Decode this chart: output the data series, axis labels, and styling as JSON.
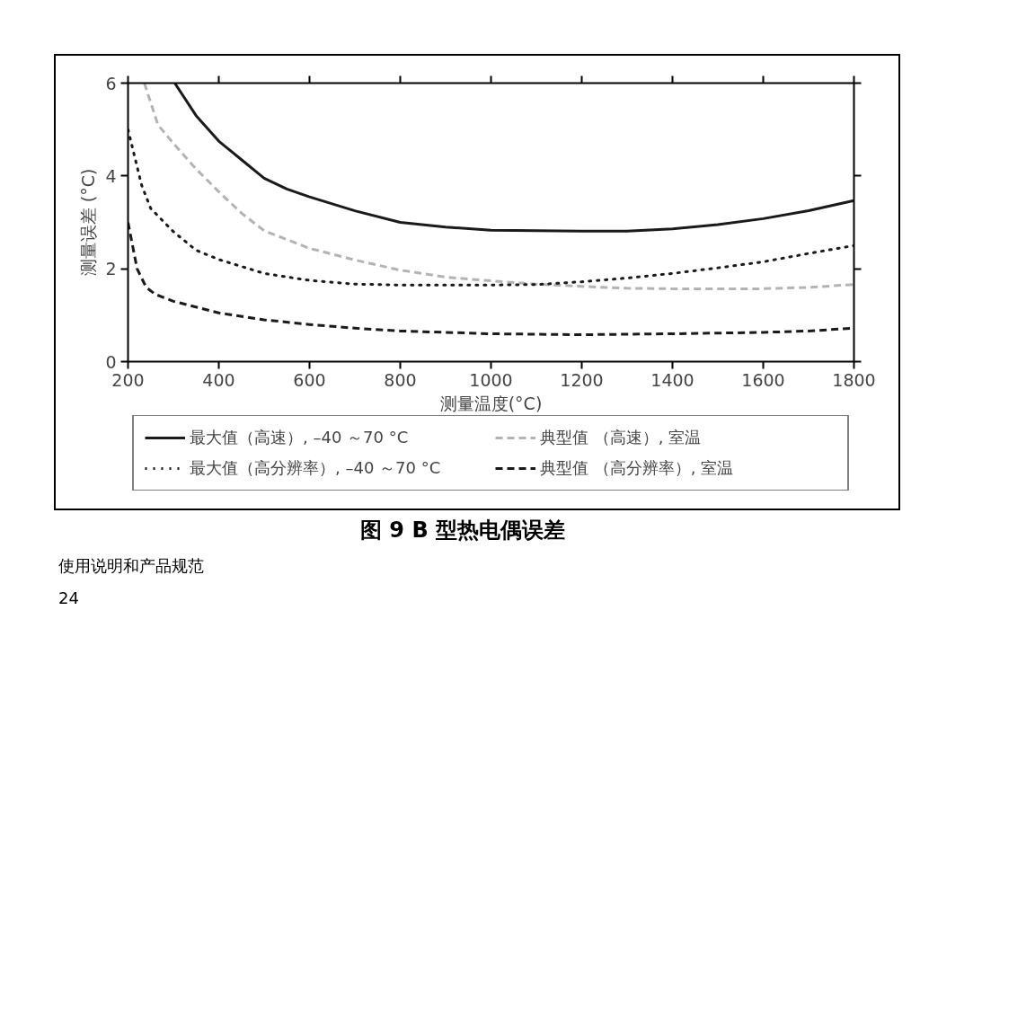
{
  "chart_data": {
    "type": "line",
    "title": "图 9 B 型热电偶误差",
    "xlabel": "测量温度(°C)",
    "ylabel": "测量误差 (°C)",
    "xlim": [
      200,
      1800
    ],
    "xticks": [
      200,
      400,
      600,
      800,
      1000,
      1200,
      1400,
      1600,
      1800
    ],
    "ylim": [
      0,
      6
    ],
    "yticks": [
      0,
      2,
      4,
      6
    ],
    "grid": false,
    "legend": "bottom",
    "marker": "none",
    "annotations": [
      "使用说明和产品规范",
      "24"
    ],
    "series": [
      {
        "name": "最大值（高速）, –40 ～70 °C",
        "color": "#1a1a1a",
        "line_style": "solid",
        "x": [
          303,
          350,
          400,
          450,
          500,
          550,
          600,
          700,
          800,
          900,
          1000,
          1100,
          1200,
          1300,
          1400,
          1500,
          1600,
          1700,
          1800
        ],
        "values": [
          6,
          5.3,
          4.75,
          4.35,
          3.95,
          3.72,
          3.55,
          3.25,
          3.0,
          2.9,
          2.83,
          2.82,
          2.81,
          2.81,
          2.86,
          2.95,
          3.08,
          3.25,
          3.47
        ]
      },
      {
        "name": "典型值 （高速）, 室温",
        "color": "#b3b3b3",
        "line_style": "dashed",
        "x": [
          236,
          266,
          300,
          350,
          400,
          450,
          500,
          600,
          700,
          800,
          900,
          1000,
          1100,
          1200,
          1300,
          1400,
          1500,
          1600,
          1700,
          1800
        ],
        "values": [
          6,
          5.1,
          4.7,
          4.15,
          3.66,
          3.2,
          2.82,
          2.44,
          2.19,
          1.97,
          1.82,
          1.74,
          1.67,
          1.62,
          1.58,
          1.57,
          1.57,
          1.57,
          1.6,
          1.66
        ]
      },
      {
        "name": "最大值（高分辨率）, –40 ～70 °C",
        "color": "#1a1a1a",
        "line_style": "dotted",
        "x": [
          200,
          210,
          220,
          230,
          250,
          300,
          350,
          400,
          500,
          600,
          700,
          800,
          1000,
          1100,
          1200,
          1300,
          1400,
          1500,
          1600,
          1700,
          1800
        ],
        "values": [
          5.0,
          4.6,
          4.2,
          3.8,
          3.3,
          2.8,
          2.4,
          2.2,
          1.9,
          1.75,
          1.67,
          1.65,
          1.65,
          1.66,
          1.72,
          1.8,
          1.9,
          2.02,
          2.15,
          2.33,
          2.5
        ]
      },
      {
        "name": "典型值 （高分辨率）, 室温",
        "color": "#1a1a1a",
        "line_style": "dashed",
        "x": [
          200,
          210,
          220,
          240,
          260,
          300,
          400,
          500,
          600,
          700,
          800,
          1000,
          1200,
          1400,
          1600,
          1700,
          1800
        ],
        "values": [
          3.0,
          2.5,
          2.0,
          1.6,
          1.45,
          1.3,
          1.05,
          0.9,
          0.8,
          0.72,
          0.66,
          0.6,
          0.58,
          0.6,
          0.63,
          0.66,
          0.72
        ]
      }
    ]
  }
}
